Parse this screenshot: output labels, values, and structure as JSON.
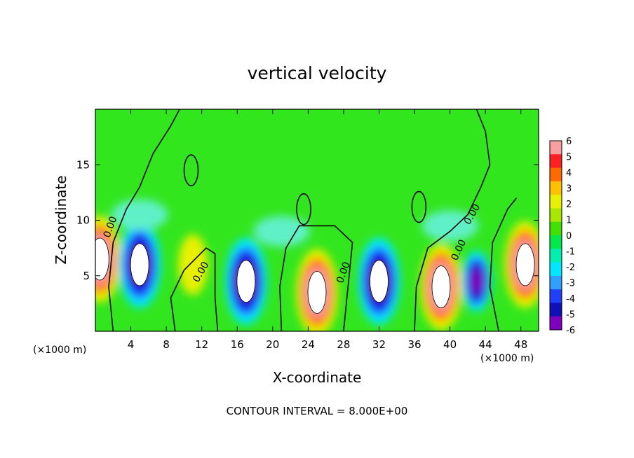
{
  "chart_data": {
    "type": "heatmap",
    "title": "vertical velocity",
    "xlabel": "X-coordinate",
    "ylabel": "Z-coordinate",
    "x_unit_left": "(×1000 m)",
    "x_unit_right": "(×1000 m)",
    "xlim": [
      0,
      50
    ],
    "ylim": [
      0,
      20
    ],
    "xticks": [
      4,
      8,
      12,
      16,
      20,
      24,
      28,
      32,
      36,
      40,
      44,
      48
    ],
    "yticks": [
      5,
      10,
      15
    ],
    "colorbar": {
      "min": -6,
      "max": 6,
      "ticks": [
        6,
        5,
        4,
        3,
        2,
        1,
        0,
        -1,
        -2,
        -3,
        -4,
        -5,
        -6
      ],
      "colors": [
        "#f8a0a0",
        "#ff2020",
        "#ff6a00",
        "#ffc000",
        "#e8f000",
        "#a8e800",
        "#40e000",
        "#00e84a",
        "#00f0b0",
        "#00e8ff",
        "#30a0ff",
        "#2040ff",
        "#1010b8",
        "#8000c0"
      ]
    },
    "contour_label": "0.00",
    "contour_interval_text": "CONTOUR INTERVAL = 8.000E+00",
    "features": [
      {
        "x": 0.5,
        "z": 6.5,
        "w": 8
      },
      {
        "x": 5.0,
        "z": 6.0,
        "w": -9
      },
      {
        "x": 11.0,
        "z": 6.0,
        "w": 2.5
      },
      {
        "x": 17.0,
        "z": 4.5,
        "w": -9
      },
      {
        "x": 25.0,
        "z": 3.5,
        "w": 9
      },
      {
        "x": 32.0,
        "z": 4.5,
        "w": -9
      },
      {
        "x": 39.0,
        "z": 4.0,
        "w": 8
      },
      {
        "x": 43.0,
        "z": 4.5,
        "w": -5
      },
      {
        "x": 48.5,
        "z": 6.0,
        "w": 9
      }
    ]
  }
}
